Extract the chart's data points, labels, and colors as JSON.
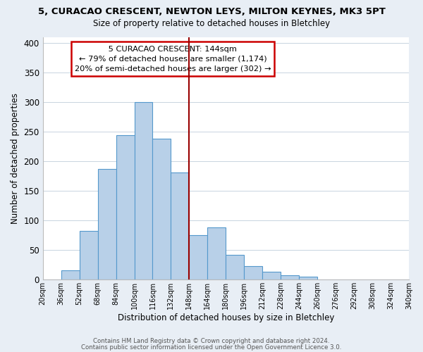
{
  "title_line1": "5, CURACAO CRESCENT, NEWTON LEYS, MILTON KEYNES, MK3 5PT",
  "title_line2": "Size of property relative to detached houses in Bletchley",
  "xlabel": "Distribution of detached houses by size in Bletchley",
  "ylabel": "Number of detached properties",
  "footer_line1": "Contains HM Land Registry data © Crown copyright and database right 2024.",
  "footer_line2": "Contains public sector information licensed under the Open Government Licence 3.0.",
  "bin_labels": [
    "20sqm",
    "36sqm",
    "52sqm",
    "68sqm",
    "84sqm",
    "100sqm",
    "116sqm",
    "132sqm",
    "148sqm",
    "164sqm",
    "180sqm",
    "196sqm",
    "212sqm",
    "228sqm",
    "244sqm",
    "260sqm",
    "276sqm",
    "292sqm",
    "308sqm",
    "324sqm",
    "340sqm"
  ],
  "bar_heights": [
    0,
    15,
    82,
    187,
    244,
    300,
    238,
    181,
    75,
    88,
    42,
    22,
    13,
    7,
    4,
    0,
    0,
    0,
    0,
    0
  ],
  "bar_color": "#b8d0e8",
  "bar_edge_color": "#5599cc",
  "vline_x_index": 8,
  "vline_color": "#990000",
  "annotation_title": "5 CURACAO CRESCENT: 144sqm",
  "annotation_line1": "← 79% of detached houses are smaller (1,174)",
  "annotation_line2": "20% of semi-detached houses are larger (302) →",
  "annotation_box_color": "white",
  "annotation_box_edgecolor": "#cc0000",
  "ylim": [
    0,
    410
  ],
  "yticks": [
    0,
    50,
    100,
    150,
    200,
    250,
    300,
    350,
    400
  ],
  "bg_color": "#e8eef5",
  "plot_bg_color": "white",
  "grid_color": "#c8d4e0"
}
